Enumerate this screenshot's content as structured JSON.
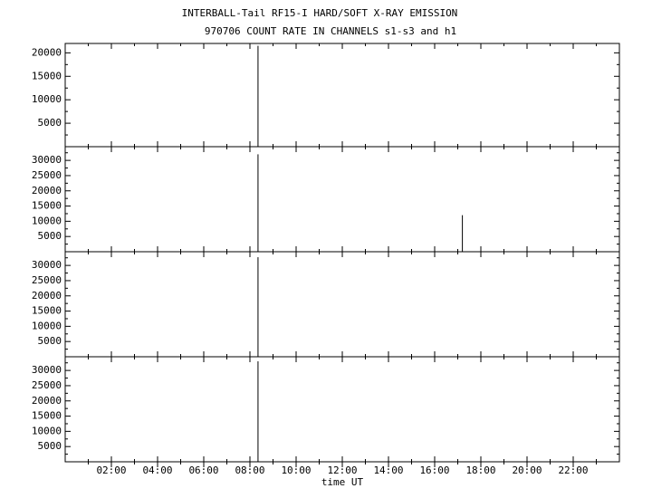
{
  "chart_data": [
    {
      "type": "spike",
      "title": "INTERBALL-Tail RF15-I HARD/SOFT X-RAY EMISSION",
      "subtitle": "970706  COUNT RATE IN CHANNELS s1-s3 and h1",
      "xlim": [
        0,
        24
      ],
      "ylim": [
        0,
        22000
      ],
      "yticks": [
        5000,
        10000,
        15000,
        20000
      ],
      "x": [
        8.35
      ],
      "values": [
        21500
      ],
      "color": "#000000"
    },
    {
      "type": "spike",
      "xlim": [
        0,
        24
      ],
      "ylim": [
        0,
        34500
      ],
      "yticks": [
        5000,
        10000,
        15000,
        20000,
        25000,
        30000
      ],
      "x": [
        8.35,
        17.2
      ],
      "values": [
        32000,
        12000
      ],
      "color": "#000000"
    },
    {
      "type": "spike",
      "xlim": [
        0,
        24
      ],
      "ylim": [
        0,
        34500
      ],
      "yticks": [
        5000,
        10000,
        15000,
        20000,
        25000,
        30000
      ],
      "x": [
        8.35
      ],
      "values": [
        32700
      ],
      "color": "#000000"
    },
    {
      "type": "spike",
      "xlim": [
        0,
        24
      ],
      "ylim": [
        0,
        34500
      ],
      "yticks": [
        5000,
        10000,
        15000,
        20000,
        25000,
        30000
      ],
      "x": [
        8.35
      ],
      "values": [
        33000
      ],
      "color": "#000000",
      "xlabel": "time UT",
      "xticks": [
        {
          "value": 2,
          "label": "02:00"
        },
        {
          "value": 4,
          "label": "04:00"
        },
        {
          "value": 6,
          "label": "06:00"
        },
        {
          "value": 8,
          "label": "08:00"
        },
        {
          "value": 10,
          "label": "10:00"
        },
        {
          "value": 12,
          "label": "12:00"
        },
        {
          "value": 14,
          "label": "14:00"
        },
        {
          "value": 16,
          "label": "16:00"
        },
        {
          "value": 18,
          "label": "18:00"
        },
        {
          "value": 20,
          "label": "20:00"
        },
        {
          "value": 22,
          "label": "22:00"
        }
      ]
    }
  ]
}
